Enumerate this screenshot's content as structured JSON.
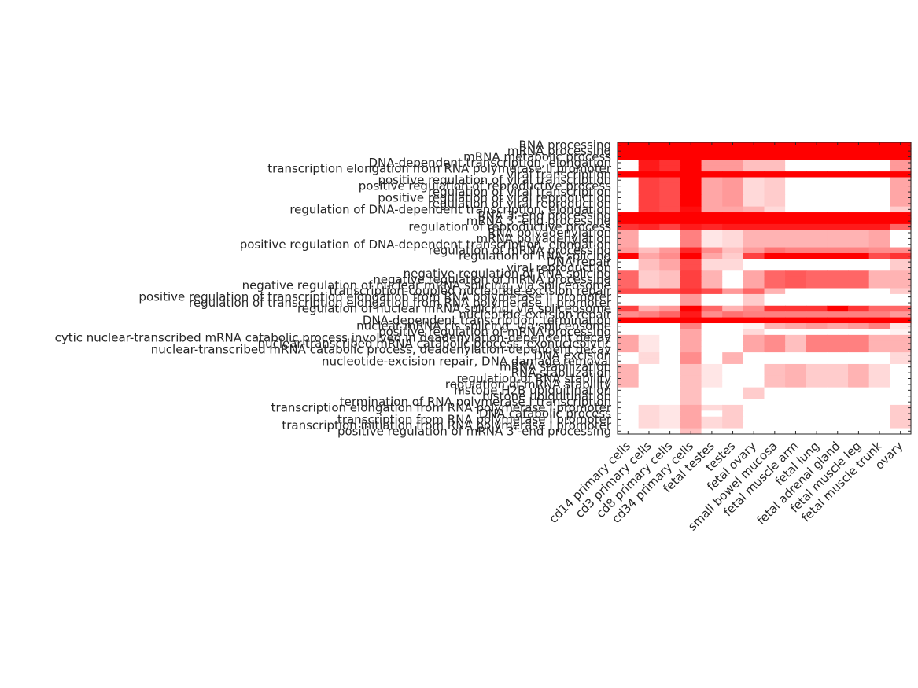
{
  "chart_data": {
    "type": "heatmap",
    "title": "",
    "xlabel": "",
    "ylabel": "",
    "colormap": {
      "low": "#ffffff",
      "high": "#ff0000"
    },
    "columns": [
      "cd14 primary cells",
      "cd3 primary cells",
      "cd8 primary cells",
      "cd34 primary cells",
      "fetal testes",
      "testes",
      "fetal ovary",
      "small bowel mucosa",
      "fetal muscle arm",
      "fetal lung",
      "fetal adrenal gland",
      "fetal muscle leg",
      "fetal muscle trunk",
      "ovary"
    ],
    "rows": [
      "RNA processing",
      "mRNA processing",
      "mRNA metabolic process",
      "DNA-dependent transcription, elongation",
      "transcription elongation from RNA polymerase II promoter",
      "viral transcription",
      "positive regulation of viral transcription",
      "positive regulation of reproductive process",
      "regulation of viral transcription",
      "positive regulation of viral reproduction",
      "regulation of viral reproduction",
      "regulation of DNA-dependent transcription, elongation",
      "RNA 3'-end processing",
      "mRNA 3'-end processing",
      "regulation of reproductive process",
      "RNA polyadenylation",
      "mRNA polyadenylation",
      "positive regulation of DNA-dependent transcription, elongation",
      "regulation of mRNA processing",
      "regulation of RNA splicing",
      "DNA repair",
      "viral reproduction",
      "negative regulation of RNA splicing",
      "negative regulation of mRNA processing",
      "negative regulation of nuclear mRNA splicing, via spliceosome",
      "transcription-coupled nucleotide-excision repair",
      "positive regulation of transcription elongation from RNA polymerase II promoter",
      "regulation of transcription elongation from RNA polymerase II promoter",
      "regulation of nuclear mRNA splicing, via spliceosome",
      "nucleotide-excision repair",
      "DNA-dependent transcription, termination",
      "nuclear mRNA cis splicing, via spliceosome",
      "positive regulation of mRNA processing",
      "cytic nuclear-transcribed mRNA catabolic process involved in deadenylation-dependent decay",
      "nuclear-transcribed mRNA catabolic process, exonucleolytic",
      "nuclear-transcribed mRNA catabolic process, deadenylation-dependent decay",
      "DNA excision",
      "nucleotide-excision repair, DNA damage removal",
      "mRNA stabilization",
      "RNA stabilization",
      "regulation of RNA stability",
      "regulation of mRNA stability",
      "histone H2B ubiquitination",
      "histone ubiquitination",
      "termination of RNA polymerase I transcription",
      "transcription elongation from RNA polymerase I promoter",
      "DNA catabolic process",
      "transcription from RNA polymerase I promoter",
      "transcription initiation from RNA polymerase I promoter",
      "positive regulation of mRNA 3'-end processing"
    ],
    "values": [
      [
        1,
        1,
        1,
        1,
        1,
        1,
        1,
        1,
        1,
        1,
        1,
        1,
        1,
        1
      ],
      [
        1,
        1,
        1,
        1,
        1,
        1,
        1,
        1,
        1,
        1,
        1,
        1,
        1,
        1
      ],
      [
        1,
        1,
        1,
        1,
        1,
        1,
        1,
        1,
        1,
        1,
        1,
        1,
        1,
        1
      ],
      [
        0,
        0.9,
        0.8,
        1,
        0.4,
        0.4,
        0.25,
        0.25,
        0,
        0,
        0,
        0,
        0,
        0.4
      ],
      [
        0,
        0.9,
        0.8,
        1,
        0.4,
        0.4,
        0.25,
        0.25,
        0,
        0,
        0,
        0,
        0,
        0.4
      ],
      [
        1,
        1,
        1,
        1,
        1,
        1,
        1,
        1,
        1,
        1,
        1,
        1,
        1,
        1
      ],
      [
        0,
        0.75,
        0.7,
        1,
        0.35,
        0.4,
        0.15,
        0.2,
        0,
        0,
        0,
        0,
        0,
        0.35
      ],
      [
        0,
        0.75,
        0.7,
        1,
        0.35,
        0.4,
        0.15,
        0.2,
        0,
        0,
        0,
        0,
        0,
        0.35
      ],
      [
        0,
        0.75,
        0.7,
        1,
        0.35,
        0.4,
        0.15,
        0.2,
        0,
        0,
        0,
        0,
        0,
        0.35
      ],
      [
        0,
        0.75,
        0.7,
        1,
        0.35,
        0.4,
        0.15,
        0.2,
        0,
        0,
        0,
        0,
        0,
        0.35
      ],
      [
        0,
        0.75,
        0.7,
        1,
        0.35,
        0.4,
        0.15,
        0.2,
        0,
        0,
        0,
        0,
        0,
        0.35
      ],
      [
        0,
        0.75,
        0.7,
        0.95,
        0.35,
        0.35,
        0.3,
        0.15,
        0,
        0,
        0,
        0,
        0,
        0.2
      ],
      [
        1,
        1,
        1,
        1,
        1,
        1,
        1,
        1,
        1,
        1,
        1,
        1,
        1,
        1
      ],
      [
        1,
        1,
        1,
        1,
        1,
        1,
        1,
        1,
        1,
        1,
        1,
        1,
        1,
        1
      ],
      [
        0.8,
        0.85,
        0.75,
        0.9,
        0.85,
        0.9,
        0.9,
        0.9,
        0.9,
        0.9,
        0.9,
        0.9,
        0.9,
        0.6
      ],
      [
        0.35,
        0,
        0,
        0.5,
        0.1,
        0.15,
        0.3,
        0.3,
        0.3,
        0.3,
        0.3,
        0.3,
        0.35,
        0
      ],
      [
        0.35,
        0,
        0,
        0.5,
        0.1,
        0.15,
        0.3,
        0.3,
        0.3,
        0.3,
        0.3,
        0.3,
        0.35,
        0
      ],
      [
        0.35,
        0,
        0,
        0.5,
        0.1,
        0.15,
        0.3,
        0.3,
        0.3,
        0.3,
        0.3,
        0.3,
        0.35,
        0
      ],
      [
        0.4,
        0.25,
        0.4,
        0.85,
        0.45,
        0.25,
        0.4,
        0.55,
        0.5,
        0.5,
        0.5,
        0.5,
        0.45,
        0.45
      ],
      [
        1,
        0.35,
        0.45,
        1,
        0.35,
        0.2,
        0.75,
        1,
        1,
        1,
        1,
        1,
        0.7,
        0.8
      ],
      [
        0,
        0.25,
        0.35,
        0.7,
        0.15,
        0.15,
        0,
        0,
        0,
        0,
        0,
        0,
        0,
        0.2
      ],
      [
        0,
        0.25,
        0.35,
        0.7,
        0.15,
        0.15,
        0,
        0,
        0,
        0,
        0,
        0,
        0,
        0.2
      ],
      [
        0.6,
        0.2,
        0.25,
        0.75,
        0.3,
        0,
        0.35,
        0.6,
        0.65,
        0.6,
        0.6,
        0.6,
        0.3,
        0.3
      ],
      [
        0.6,
        0.2,
        0.25,
        0.75,
        0.3,
        0,
        0.35,
        0.6,
        0.65,
        0.6,
        0.6,
        0.6,
        0.3,
        0.3
      ],
      [
        0.6,
        0.2,
        0.25,
        0.75,
        0.3,
        0,
        0.35,
        0.6,
        0.65,
        0.6,
        0.6,
        0.6,
        0.3,
        0.3
      ],
      [
        0.7,
        0.7,
        0.7,
        0.8,
        0.7,
        0.4,
        0.6,
        0.3,
        0,
        0,
        0,
        0,
        0,
        0.2
      ],
      [
        0,
        0,
        0,
        0.4,
        0,
        0,
        0.2,
        0,
        0,
        0,
        0,
        0,
        0,
        0
      ],
      [
        0,
        0,
        0,
        0.4,
        0,
        0,
        0.2,
        0,
        0,
        0,
        0,
        0,
        0,
        0
      ],
      [
        0.75,
        0.3,
        0.4,
        1,
        0.6,
        0.3,
        0.45,
        0.8,
        0.8,
        0.8,
        1,
        0.8,
        0.6,
        0.6
      ],
      [
        0.45,
        0.5,
        0.6,
        0.9,
        0.45,
        0.55,
        0.5,
        0.5,
        0.5,
        0.5,
        0.5,
        0.5,
        0.5,
        0.4
      ],
      [
        1,
        1,
        1,
        1,
        1,
        1,
        1,
        1,
        1,
        1,
        1,
        1,
        1,
        1
      ],
      [
        0,
        0,
        0,
        0.5,
        0,
        0,
        0.05,
        0.3,
        0.35,
        0.4,
        0.35,
        0.4,
        0.5,
        0.1
      ],
      [
        0,
        0,
        0,
        0.35,
        0,
        0,
        0.15,
        0,
        0,
        0,
        0,
        0,
        0,
        0.05
      ],
      [
        0.35,
        0.1,
        0,
        0.35,
        0,
        0,
        0.35,
        0.45,
        0.25,
        0.5,
        0.5,
        0.5,
        0.3,
        0.3
      ],
      [
        0.35,
        0.1,
        0,
        0.35,
        0,
        0,
        0.35,
        0.45,
        0.25,
        0.5,
        0.5,
        0.5,
        0.3,
        0.3
      ],
      [
        0.35,
        0.1,
        0,
        0.35,
        0,
        0,
        0.35,
        0.45,
        0.25,
        0.5,
        0.5,
        0.5,
        0.3,
        0.3
      ],
      [
        0,
        0.15,
        0,
        0.45,
        0,
        0.3,
        0,
        0,
        0,
        0,
        0,
        0,
        0,
        0.15
      ],
      [
        0,
        0.15,
        0,
        0.45,
        0,
        0.3,
        0,
        0,
        0,
        0,
        0,
        0,
        0,
        0.15
      ],
      [
        0.3,
        0,
        0,
        0.25,
        0.1,
        0,
        0,
        0.25,
        0.3,
        0.2,
        0.2,
        0.3,
        0.15,
        0
      ],
      [
        0.3,
        0,
        0,
        0.25,
        0.1,
        0,
        0,
        0.25,
        0.3,
        0.2,
        0.2,
        0.3,
        0.15,
        0
      ],
      [
        0.3,
        0,
        0,
        0.25,
        0.1,
        0,
        0,
        0.25,
        0.3,
        0.2,
        0.2,
        0.3,
        0.15,
        0
      ],
      [
        0.3,
        0,
        0,
        0.25,
        0.1,
        0,
        0,
        0.25,
        0.3,
        0.2,
        0.2,
        0.3,
        0.15,
        0
      ],
      [
        0,
        0,
        0,
        0.25,
        0,
        0,
        0.2,
        0,
        0,
        0,
        0,
        0,
        0,
        0
      ],
      [
        0,
        0,
        0,
        0.25,
        0,
        0,
        0.2,
        0,
        0,
        0,
        0,
        0,
        0,
        0
      ],
      [
        0,
        0,
        0,
        0.25,
        0,
        0,
        0,
        0,
        0,
        0,
        0,
        0,
        0,
        0
      ],
      [
        0,
        0.15,
        0.1,
        0.35,
        0.15,
        0.2,
        0,
        0,
        0,
        0,
        0,
        0,
        0,
        0.2
      ],
      [
        0,
        0.15,
        0.1,
        0.35,
        0,
        0.2,
        0,
        0,
        0,
        0,
        0,
        0,
        0,
        0.2
      ],
      [
        0,
        0.15,
        0.1,
        0.35,
        0.15,
        0.2,
        0,
        0,
        0,
        0,
        0,
        0,
        0,
        0.2
      ],
      [
        0,
        0.15,
        0.1,
        0.35,
        0.15,
        0.2,
        0,
        0,
        0,
        0,
        0,
        0,
        0,
        0.2
      ],
      [
        0,
        0,
        0,
        0.25,
        0,
        0,
        0,
        0,
        0,
        0,
        0,
        0,
        0,
        0
      ]
    ],
    "grid": false,
    "legend": "none"
  }
}
